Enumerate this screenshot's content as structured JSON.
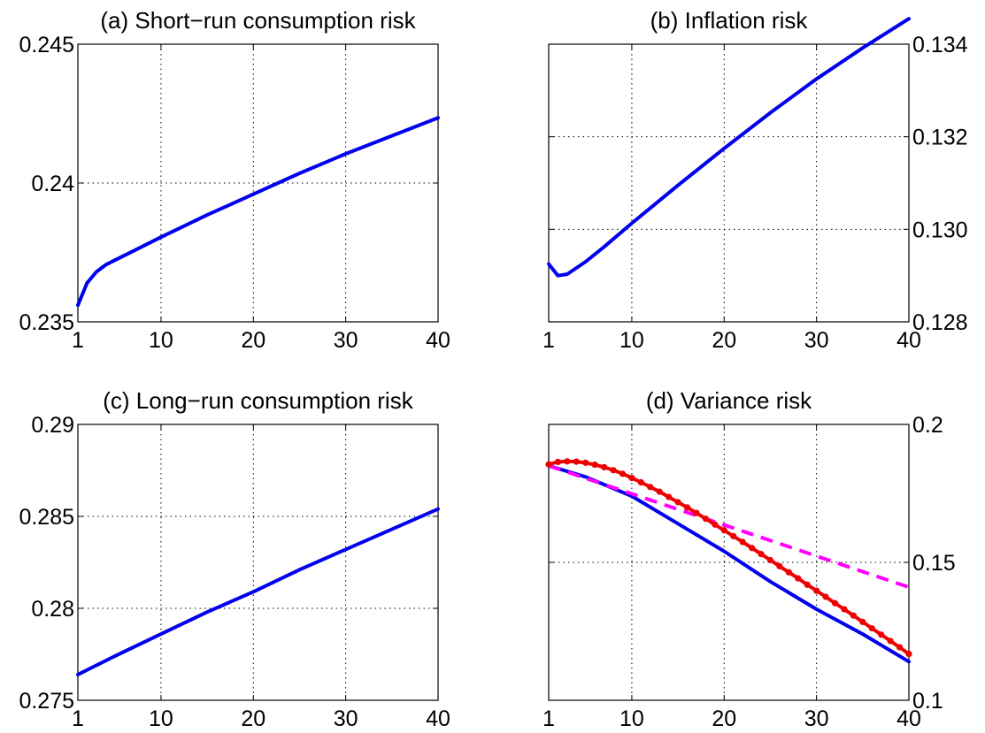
{
  "chart_data": [
    {
      "type": "line",
      "title": "(a) Short−run consumption risk",
      "xlabel": "",
      "ylabel": "",
      "x_ticks": [
        "1",
        "10",
        "20",
        "30",
        "40"
      ],
      "y_ticks": [
        "0.235",
        "0.24",
        "0.245"
      ],
      "xlim": [
        1,
        40
      ],
      "ylim": [
        0.235,
        0.245
      ],
      "y_axis_side": "left",
      "grid": true,
      "series": [
        {
          "color": "#0000ee",
          "style": "solid",
          "x": [
            1,
            2,
            3,
            4,
            5,
            7,
            10,
            15,
            20,
            25,
            30,
            35,
            40
          ],
          "y": [
            0.2356,
            0.2364,
            0.2368,
            0.23705,
            0.23722,
            0.23755,
            0.23805,
            0.23885,
            0.2396,
            0.24035,
            0.24105,
            0.2417,
            0.24235
          ]
        }
      ]
    },
    {
      "type": "line",
      "title": "(b) Inflation risk",
      "xlabel": "",
      "ylabel": "",
      "x_ticks": [
        "1",
        "10",
        "20",
        "30",
        "40"
      ],
      "y_ticks": [
        "0.128",
        "0.130",
        "0.132",
        "0.134"
      ],
      "xlim": [
        1,
        40
      ],
      "ylim": [
        0.128,
        0.134
      ],
      "y_axis_side": "right",
      "grid": true,
      "series": [
        {
          "color": "#0000ee",
          "style": "solid",
          "x": [
            1,
            2,
            3,
            5,
            7,
            10,
            15,
            20,
            25,
            30,
            35,
            40
          ],
          "y": [
            0.12925,
            0.129,
            0.12903,
            0.1293,
            0.12962,
            0.13013,
            0.13095,
            0.13175,
            0.13252,
            0.13325,
            0.13392,
            0.13455
          ]
        }
      ]
    },
    {
      "type": "line",
      "title": "(c) Long−run consumption risk",
      "xlabel": "",
      "ylabel": "",
      "x_ticks": [
        "1",
        "10",
        "20",
        "30",
        "40"
      ],
      "y_ticks": [
        "0.275",
        "0.28",
        "0.285",
        "0.29"
      ],
      "xlim": [
        1,
        40
      ],
      "ylim": [
        0.275,
        0.29
      ],
      "y_axis_side": "left",
      "grid": true,
      "series": [
        {
          "color": "#0000ee",
          "style": "solid",
          "x": [
            1,
            5,
            10,
            15,
            20,
            25,
            30,
            35,
            40
          ],
          "y": [
            0.2764,
            0.2774,
            0.2786,
            0.2798,
            0.2809,
            0.2821,
            0.2832,
            0.2843,
            0.2854
          ]
        }
      ]
    },
    {
      "type": "line",
      "title": "(d) Variance risk",
      "xlabel": "",
      "ylabel": "",
      "x_ticks": [
        "1",
        "10",
        "20",
        "30",
        "40"
      ],
      "y_ticks": [
        "0.1",
        "0.15",
        "0.2"
      ],
      "xlim": [
        1,
        40
      ],
      "ylim": [
        0.1,
        0.2
      ],
      "y_axis_side": "right",
      "grid": true,
      "series": [
        {
          "color": "#0000ee",
          "style": "solid",
          "x": [
            1,
            5,
            10,
            15,
            20,
            25,
            30,
            35,
            40
          ],
          "y": [
            0.185,
            0.181,
            0.174,
            0.164,
            0.154,
            0.143,
            0.133,
            0.124,
            0.114
          ]
        },
        {
          "color": "#ff00ff",
          "style": "dashed",
          "x": [
            1,
            40
          ],
          "y": [
            0.185,
            0.141
          ]
        },
        {
          "color": "#ee0000",
          "style": "solid-dotted",
          "x": [
            1,
            2,
            3,
            4,
            5,
            6,
            7,
            8,
            9,
            10,
            11,
            12,
            13,
            14,
            15,
            16,
            17,
            18,
            19,
            20,
            21,
            22,
            23,
            24,
            25,
            26,
            27,
            28,
            29,
            30,
            31,
            32,
            33,
            34,
            35,
            36,
            37,
            38,
            39,
            40
          ],
          "y": [
            0.1855,
            0.1864,
            0.1866,
            0.1865,
            0.1861,
            0.1854,
            0.1845,
            0.1834,
            0.1821,
            0.1806,
            0.179,
            0.1773,
            0.1756,
            0.1737,
            0.1718,
            0.1699,
            0.1679,
            0.1658,
            0.1637,
            0.1616,
            0.1595,
            0.1574,
            0.1552,
            0.153,
            0.1508,
            0.1486,
            0.1464,
            0.1442,
            0.1419,
            0.1397,
            0.1375,
            0.1352,
            0.133,
            0.1307,
            0.1284,
            0.1261,
            0.1238,
            0.1215,
            0.1192,
            0.1168
          ]
        }
      ]
    }
  ]
}
